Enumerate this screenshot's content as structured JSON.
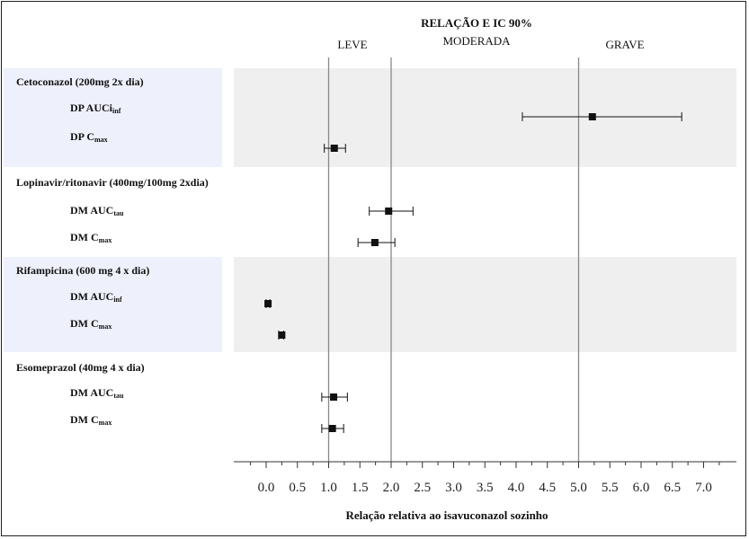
{
  "chart_data": {
    "type": "forest",
    "title": "RELAÇÃO E IC 90%",
    "xlabel": "Relação relativa ao isavuconazol sozinho",
    "xlim": [
      -0.25,
      7.25
    ],
    "ticks": [
      0.0,
      0.5,
      1.0,
      1.5,
      2.0,
      2.5,
      3.0,
      3.5,
      4.0,
      4.5,
      5.0,
      5.5,
      6.0,
      6.5,
      7.0
    ],
    "tick_labels": [
      "0.0",
      "0.5",
      "1.0",
      "1.5",
      "2.0",
      "2.5",
      "3.0",
      "3.5",
      "4.0",
      "4.5",
      "5.0",
      "5.5",
      "6.0",
      "6.5",
      "7.0"
    ],
    "reference_lines": [
      {
        "value": 1.0,
        "label": "LEVE"
      },
      {
        "value": 2.0,
        "label": "MODERADA"
      },
      {
        "value": 5.0,
        "label": "GRAVE"
      }
    ],
    "groups": [
      {
        "name": "Cetoconazol (200mg 2x dia)",
        "shaded": true,
        "rows": [
          {
            "prefix": "DP AUC",
            "sub": "inf",
            "prefix_tail": "i",
            "estimate": 5.22,
            "lower": 4.1,
            "upper": 6.65
          },
          {
            "prefix": "DP C",
            "sub": "max",
            "prefix_tail": "",
            "estimate": 1.09,
            "lower": 0.93,
            "upper": 1.27
          }
        ]
      },
      {
        "name": "Lopinavir/ritonavir (400mg/100mg 2xdia)",
        "shaded": false,
        "rows": [
          {
            "prefix": "DM AUC",
            "sub": "tau",
            "prefix_tail": "",
            "estimate": 1.96,
            "lower": 1.65,
            "upper": 2.35
          },
          {
            "prefix": "DM C",
            "sub": "max",
            "prefix_tail": "",
            "estimate": 1.74,
            "lower": 1.47,
            "upper": 2.06
          }
        ]
      },
      {
        "name": "Rifampicina (600 mg 4 x dia)",
        "shaded": true,
        "rows": [
          {
            "prefix": "DM AUC",
            "sub": "inf",
            "prefix_tail": "",
            "estimate": 0.03,
            "lower": 0.0,
            "upper": 0.06
          },
          {
            "prefix": "DM C",
            "sub": "max",
            "prefix_tail": "",
            "estimate": 0.25,
            "lower": 0.2,
            "upper": 0.28
          }
        ]
      },
      {
        "name": "Esomeprazol (40mg 4 x dia)",
        "shaded": false,
        "rows": [
          {
            "prefix": "DM AUC",
            "sub": "tau",
            "prefix_tail": "",
            "estimate": 1.08,
            "lower": 0.89,
            "upper": 1.3
          },
          {
            "prefix": "DM C",
            "sub": "max",
            "prefix_tail": "",
            "estimate": 1.06,
            "lower": 0.89,
            "upper": 1.24
          }
        ]
      }
    ],
    "colors": {
      "label_panel": "#eef0fb",
      "plot_panel": "#efefef",
      "marker": "#111111",
      "reference_line": "#888888",
      "axis": "#333333"
    }
  }
}
